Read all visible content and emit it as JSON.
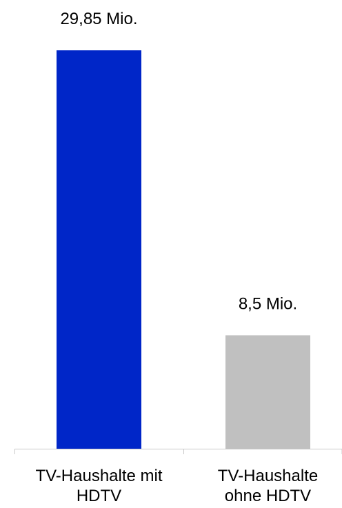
{
  "chart_data": {
    "type": "bar",
    "categories": [
      [
        "TV-Haushalte mit",
        "HDTV"
      ],
      [
        "TV-Haushalte",
        "ohne HDTV"
      ]
    ],
    "values": [
      29.85,
      8.5
    ],
    "value_labels": [
      "29,85 Mio.",
      "8,5 Mio."
    ],
    "colors": [
      "#0026c8",
      "#c0c0c0"
    ],
    "axis_color": "#c8c8c8",
    "title": "",
    "xlabel": "",
    "ylabel": "",
    "ylim": [
      0,
      29.85
    ],
    "grid": false,
    "legend": "none"
  }
}
